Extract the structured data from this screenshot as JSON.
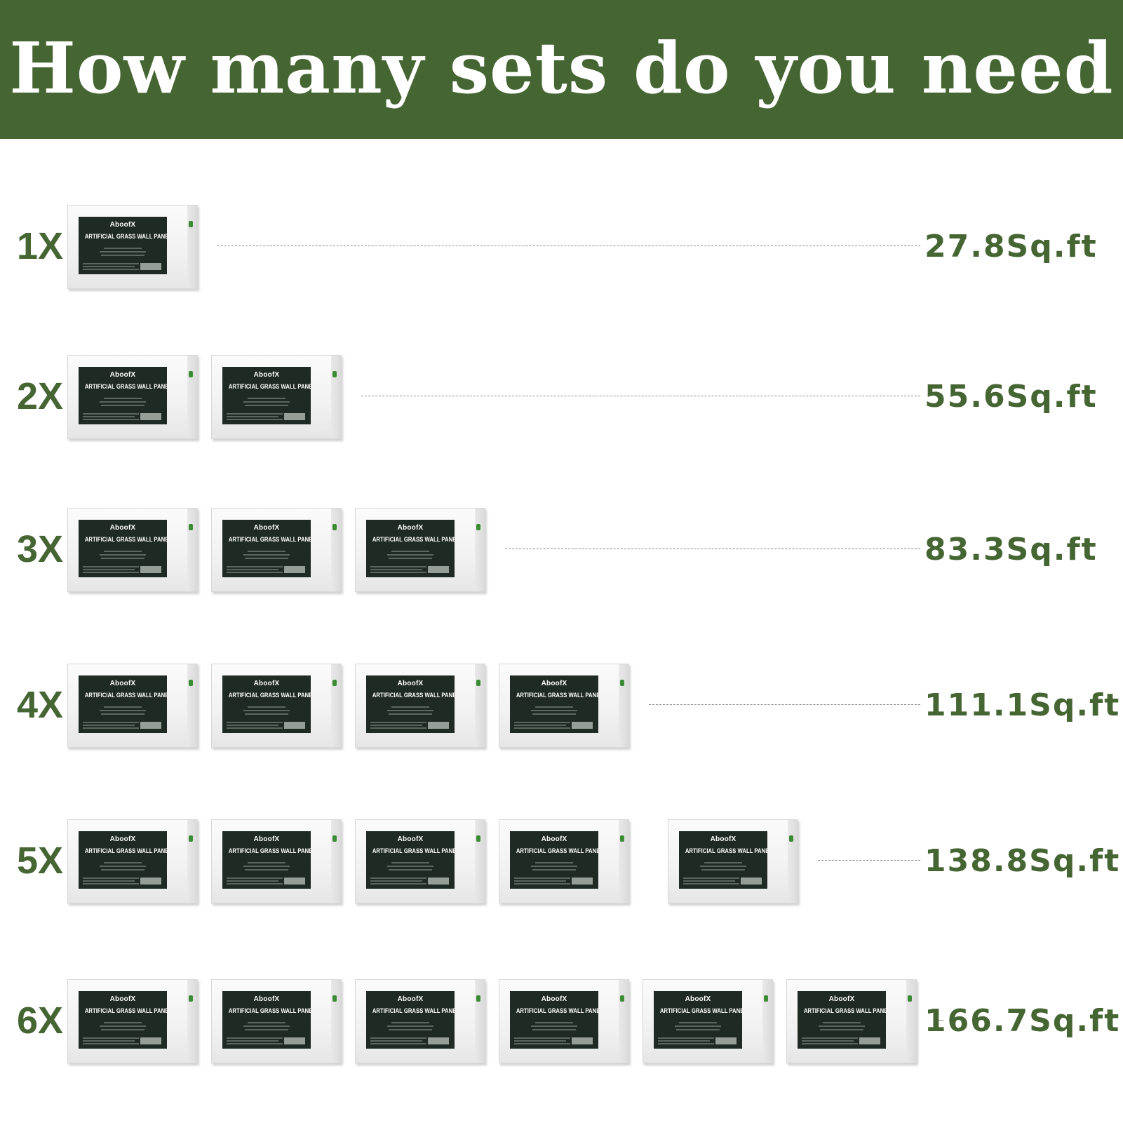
{
  "header": {
    "title": "How many sets do you need"
  },
  "box": {
    "brand": "AboofX",
    "product": "ARTIFICIAL GRASS WALL PANELS"
  },
  "colors": {
    "brand_green": "#456532",
    "background": "#ffffff",
    "box_label": "#1e2a23"
  },
  "rows": [
    {
      "quantity": "1X",
      "boxes": 1,
      "coverage": "27.8Sq.ft"
    },
    {
      "quantity": "2X",
      "boxes": 2,
      "coverage": "55.6Sq.ft"
    },
    {
      "quantity": "3X",
      "boxes": 3,
      "coverage": "83.3Sq.ft"
    },
    {
      "quantity": "4X",
      "boxes": 4,
      "coverage": "111.1Sq.ft"
    },
    {
      "quantity": "5X",
      "boxes": 5,
      "coverage": "138.8Sq.ft"
    },
    {
      "quantity": "6X",
      "boxes": 6,
      "coverage": "166.7Sq.ft"
    }
  ]
}
